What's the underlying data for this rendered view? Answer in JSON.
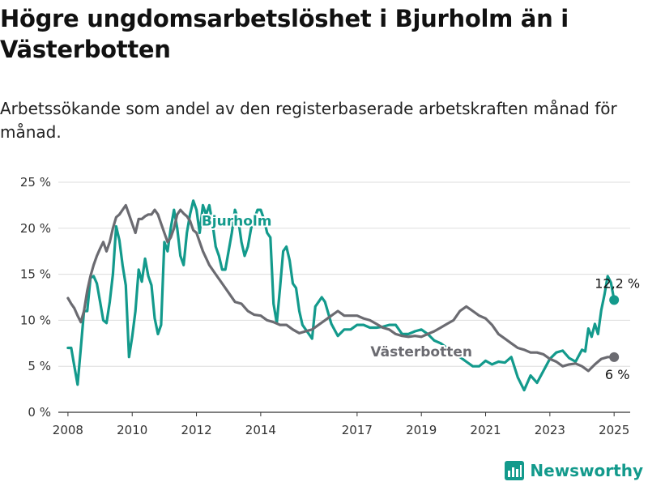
{
  "header": {
    "title": "Högre ungdomsarbetslöshet i Bjurholm än i Västerbotten",
    "subtitle": "Arbetssökande som andel av den registerbaserade arbetskraften månad för månad."
  },
  "footer": {
    "brand": "Newsworthy",
    "logo_icon": "bar-chart-logo-icon"
  },
  "colors": {
    "bjurholm": "#139a8c",
    "vasterbotten": "#6b6b71",
    "grid": "#dddddd",
    "axis": "#333333"
  },
  "chart_data": {
    "type": "line",
    "title": "Högre ungdomsarbetslöshet i Bjurholm än i Västerbotten",
    "subtitle": "Arbetssökande som andel av den registerbaserade arbetskraften månad för månad.",
    "xlabel": "",
    "ylabel": "",
    "xlim": [
      2007.7,
      2025.5
    ],
    "ylim": [
      0,
      25
    ],
    "x_ticks": [
      {
        "x": 2008,
        "label": "2008"
      },
      {
        "x": 2010,
        "label": "2010"
      },
      {
        "x": 2012,
        "label": "2012"
      },
      {
        "x": 2014,
        "label": "2014"
      },
      {
        "x": 2017,
        "label": "2017"
      },
      {
        "x": 2019,
        "label": "2019"
      },
      {
        "x": 2021,
        "label": "2021"
      },
      {
        "x": 2023,
        "label": "2023"
      },
      {
        "x": 2025,
        "label": "2025"
      }
    ],
    "y_ticks": [
      {
        "y": 0,
        "label": "0 %"
      },
      {
        "y": 5,
        "label": "5 %"
      },
      {
        "y": 10,
        "label": "10 %"
      },
      {
        "y": 15,
        "label": "15 %"
      },
      {
        "y": 20,
        "label": "20 %"
      },
      {
        "y": 25,
        "label": "25 %"
      }
    ],
    "grid": true,
    "legend": "direct labels",
    "series": [
      {
        "name": "Bjurholm",
        "color": "#139a8c",
        "end_label": "12,2 %",
        "end_value": 12.2,
        "x": [
          2008.0,
          2008.1,
          2008.2,
          2008.3,
          2008.4,
          2008.5,
          2008.6,
          2008.7,
          2008.8,
          2008.9,
          2009.0,
          2009.1,
          2009.2,
          2009.3,
          2009.4,
          2009.5,
          2009.6,
          2009.7,
          2009.8,
          2009.9,
          2010.0,
          2010.1,
          2010.2,
          2010.3,
          2010.4,
          2010.5,
          2010.6,
          2010.7,
          2010.8,
          2010.9,
          2011.0,
          2011.1,
          2011.2,
          2011.3,
          2011.4,
          2011.5,
          2011.6,
          2011.7,
          2011.8,
          2011.9,
          2012.0,
          2012.1,
          2012.2,
          2012.3,
          2012.4,
          2012.5,
          2012.6,
          2012.7,
          2012.8,
          2012.9,
          2013.0,
          2013.1,
          2013.2,
          2013.3,
          2013.4,
          2013.5,
          2013.6,
          2013.7,
          2013.8,
          2013.9,
          2014.0,
          2014.1,
          2014.2,
          2014.3,
          2014.4,
          2014.5,
          2014.6,
          2014.7,
          2014.8,
          2014.9,
          2015.0,
          2015.1,
          2015.2,
          2015.3,
          2015.4,
          2015.5,
          2015.6,
          2015.7,
          2015.8,
          2015.9,
          2016.0,
          2016.2,
          2016.4,
          2016.6,
          2016.8,
          2017.0,
          2017.2,
          2017.4,
          2017.6,
          2017.8,
          2018.0,
          2018.2,
          2018.4,
          2018.6,
          2018.8,
          2019.0,
          2019.2,
          2019.4,
          2019.6,
          2019.8,
          2020.0,
          2020.2,
          2020.4,
          2020.6,
          2020.8,
          2021.0,
          2021.2,
          2021.4,
          2021.6,
          2021.8,
          2022.0,
          2022.2,
          2022.4,
          2022.6,
          2022.8,
          2023.0,
          2023.2,
          2023.4,
          2023.6,
          2023.8,
          2024.0,
          2024.1,
          2024.2,
          2024.3,
          2024.4,
          2024.5,
          2024.6,
          2024.7,
          2024.8,
          2024.9,
          2025.0
        ],
        "values": [
          7,
          7,
          5,
          3,
          7,
          11,
          11,
          14.6,
          14.8,
          14,
          12,
          10,
          9.7,
          12,
          15,
          20.2,
          18.7,
          16,
          13.8,
          6,
          8.2,
          11,
          15.5,
          14.2,
          16.7,
          14.8,
          13.8,
          10.2,
          8.5,
          9.5,
          18.5,
          17.5,
          20,
          22,
          20,
          17,
          16,
          19.5,
          21.5,
          23,
          22,
          19.5,
          22.5,
          21.5,
          22.5,
          20.5,
          18,
          17,
          15.5,
          15.5,
          17.5,
          19.5,
          22,
          21,
          18.5,
          17,
          18,
          20,
          21,
          22,
          22,
          21,
          19.5,
          19,
          11.8,
          9.7,
          13.5,
          17.5,
          18,
          16.5,
          14,
          13.5,
          11,
          9.5,
          9,
          8.5,
          8,
          11.5,
          12,
          12.5,
          12,
          9.6,
          8.3,
          9,
          9,
          9.5,
          9.5,
          9.2,
          9.2,
          9.3,
          9.5,
          9.5,
          8.5,
          8.5,
          8.8,
          9.0,
          8.5,
          7.8,
          7.5,
          7,
          6.5,
          6,
          5.5,
          5,
          5,
          5.6,
          5.2,
          5.5,
          5.4,
          6,
          3.8,
          2.4,
          4,
          3.2,
          4.5,
          5.8,
          6.5,
          6.7,
          5.9,
          5.5,
          6.8,
          6.6,
          9.1,
          8.2,
          9.6,
          8.5,
          11.1,
          12.8,
          14.8,
          14.1,
          12.2
        ]
      },
      {
        "name": "Västerbotten",
        "color": "#6b6b71",
        "end_label": "6 %",
        "end_value": 6,
        "x": [
          2008.0,
          2008.1,
          2008.2,
          2008.3,
          2008.4,
          2008.5,
          2008.6,
          2008.7,
          2008.8,
          2008.9,
          2009.0,
          2009.1,
          2009.2,
          2009.3,
          2009.4,
          2009.5,
          2009.6,
          2009.7,
          2009.8,
          2009.9,
          2010.0,
          2010.1,
          2010.2,
          2010.3,
          2010.4,
          2010.5,
          2010.6,
          2010.7,
          2010.8,
          2010.9,
          2011.0,
          2011.1,
          2011.2,
          2011.3,
          2011.4,
          2011.5,
          2011.6,
          2011.7,
          2011.8,
          2011.9,
          2012.0,
          2012.2,
          2012.4,
          2012.6,
          2012.8,
          2013.0,
          2013.2,
          2013.4,
          2013.6,
          2013.8,
          2014.0,
          2014.2,
          2014.4,
          2014.6,
          2014.8,
          2015.0,
          2015.2,
          2015.4,
          2015.6,
          2015.8,
          2016.0,
          2016.2,
          2016.4,
          2016.6,
          2016.8,
          2017.0,
          2017.2,
          2017.4,
          2017.6,
          2017.8,
          2018.0,
          2018.2,
          2018.4,
          2018.6,
          2018.8,
          2019.0,
          2019.2,
          2019.4,
          2019.6,
          2019.8,
          2020.0,
          2020.2,
          2020.4,
          2020.6,
          2020.8,
          2021.0,
          2021.2,
          2021.4,
          2021.6,
          2021.8,
          2022.0,
          2022.2,
          2022.4,
          2022.6,
          2022.8,
          2023.0,
          2023.2,
          2023.4,
          2023.6,
          2023.8,
          2024.0,
          2024.2,
          2024.4,
          2024.6,
          2024.8,
          2025.0
        ],
        "values": [
          12.4,
          11.8,
          11.3,
          10.5,
          9.8,
          11,
          13.2,
          14.8,
          16,
          17,
          17.8,
          18.5,
          17.5,
          18.5,
          20,
          21.2,
          21.5,
          22,
          22.5,
          21.5,
          20.5,
          19.5,
          21,
          21,
          21.3,
          21.5,
          21.5,
          22,
          21.5,
          20.5,
          19.5,
          18.5,
          19,
          20,
          21.5,
          22,
          21.6,
          21.3,
          20.8,
          19.8,
          19.5,
          17.5,
          16,
          15,
          14,
          13,
          12,
          11.8,
          11,
          10.6,
          10.5,
          10,
          9.8,
          9.5,
          9.5,
          9,
          8.6,
          8.8,
          9,
          9.5,
          10,
          10.5,
          11,
          10.5,
          10.5,
          10.5,
          10.2,
          10,
          9.6,
          9.2,
          9,
          8.5,
          8.3,
          8.2,
          8.3,
          8.2,
          8.5,
          8.8,
          9.2,
          9.6,
          10,
          11,
          11.5,
          11,
          10.5,
          10.2,
          9.5,
          8.5,
          8,
          7.5,
          7,
          6.8,
          6.5,
          6.5,
          6.3,
          5.8,
          5.5,
          5,
          5.2,
          5.3,
          5,
          4.5,
          5.2,
          5.8,
          6,
          6
        ]
      }
    ]
  }
}
